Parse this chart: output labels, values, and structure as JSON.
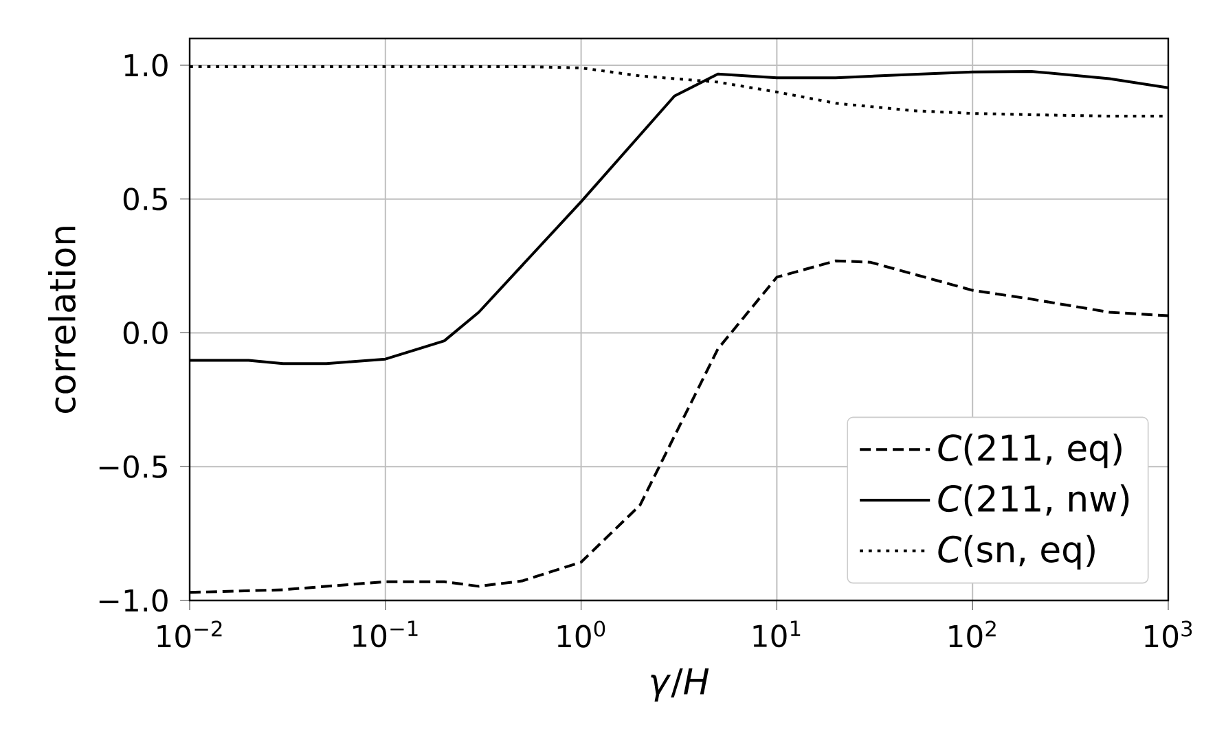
{
  "chart_data": {
    "type": "line",
    "xlabel": "*γ*/*H*",
    "ylabel": "correlation",
    "log": "x",
    "grid": true,
    "legend": "bottom right",
    "xlim": [
      0.01,
      1000
    ],
    "ylim": [
      -1.0,
      1.1
    ],
    "xticks": [
      {
        "value": 0.01,
        "label": "10$^{−2}$"
      },
      {
        "value": 0.1,
        "label": "10$^{−1}$"
      },
      {
        "value": 1,
        "label": "10$^{0}$"
      },
      {
        "value": 10,
        "label": "10$^{1}$"
      },
      {
        "value": 100,
        "label": "10$^{2}$"
      },
      {
        "value": 1000,
        "label": "10$^{3}$"
      }
    ],
    "yticks": [
      {
        "value": -1.0,
        "label": "−1.0"
      },
      {
        "value": -0.5,
        "label": "−0.5"
      },
      {
        "value": 0.0,
        "label": "0.0"
      },
      {
        "value": 0.5,
        "label": "0.5"
      },
      {
        "value": 1.0,
        "label": "1.0"
      }
    ],
    "series": [
      {
        "name": "*C*(211, eq)",
        "color": "#000000",
        "line_style": "dashed",
        "x": [
          0.01,
          0.03,
          0.1,
          0.2,
          0.3,
          0.5,
          1,
          2,
          5,
          10,
          20,
          30,
          100,
          200,
          500,
          1000
        ],
        "values": [
          -0.97,
          -0.96,
          -0.93,
          -0.93,
          -0.947,
          -0.927,
          -0.857,
          -0.644,
          -0.06,
          0.208,
          0.269,
          0.264,
          0.159,
          0.126,
          0.077,
          0.064
        ]
      },
      {
        "name": "*C*(211, nw)",
        "color": "#000000",
        "line_style": "solid",
        "x": [
          0.01,
          0.02,
          0.03,
          0.05,
          0.1,
          0.2,
          0.3,
          1,
          3,
          5,
          10,
          20,
          50,
          100,
          200,
          500,
          1000
        ],
        "values": [
          -0.103,
          -0.103,
          -0.115,
          -0.115,
          -0.098,
          -0.03,
          0.077,
          0.49,
          0.885,
          0.967,
          0.953,
          0.953,
          0.966,
          0.975,
          0.977,
          0.95,
          0.916
        ]
      },
      {
        "name": "*C*(sn, eq)",
        "color": "#000000",
        "line_style": "dotted",
        "x": [
          0.01,
          0.02,
          0.05,
          0.1,
          0.2,
          0.5,
          1,
          2,
          5,
          10,
          20,
          50,
          100,
          200,
          500,
          1000
        ],
        "values": [
          0.995,
          0.995,
          0.995,
          0.995,
          0.995,
          0.995,
          0.99,
          0.96,
          0.937,
          0.9,
          0.858,
          0.83,
          0.82,
          0.815,
          0.81,
          0.81
        ]
      }
    ]
  }
}
